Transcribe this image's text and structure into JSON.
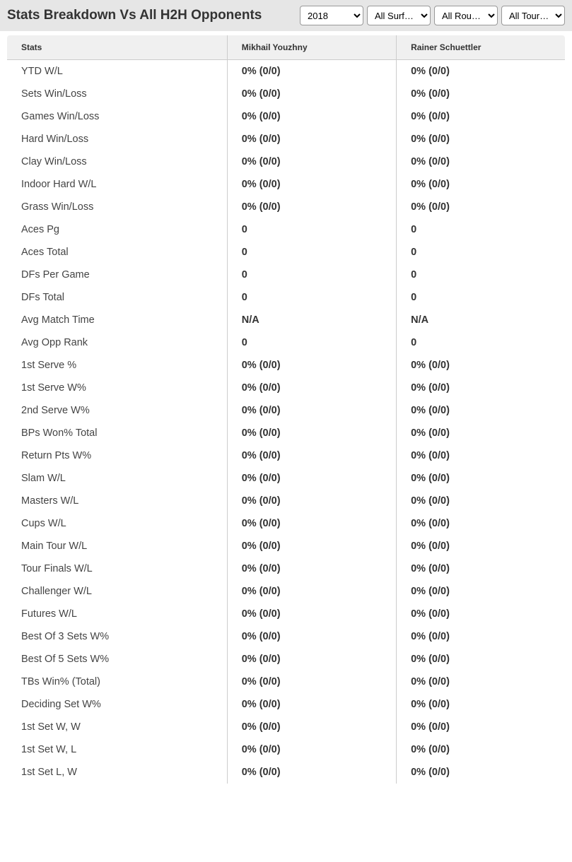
{
  "header": {
    "title": "Stats Breakdown Vs All H2H Opponents"
  },
  "filters": {
    "year": {
      "selected": "2018"
    },
    "surface": {
      "selected": "All Surf…"
    },
    "round": {
      "selected": "All Rou…"
    },
    "tournament": {
      "selected": "All Tour…"
    }
  },
  "table": {
    "columns": {
      "stats": "Stats",
      "player1": "Mikhail Youzhny",
      "player2": "Rainer Schuettler"
    },
    "rows": [
      {
        "stat": "YTD W/L",
        "p1": "0% (0/0)",
        "p2": "0% (0/0)"
      },
      {
        "stat": "Sets Win/Loss",
        "p1": "0% (0/0)",
        "p2": "0% (0/0)"
      },
      {
        "stat": "Games Win/Loss",
        "p1": "0% (0/0)",
        "p2": "0% (0/0)"
      },
      {
        "stat": "Hard Win/Loss",
        "p1": "0% (0/0)",
        "p2": "0% (0/0)"
      },
      {
        "stat": "Clay Win/Loss",
        "p1": "0% (0/0)",
        "p2": "0% (0/0)"
      },
      {
        "stat": "Indoor Hard W/L",
        "p1": "0% (0/0)",
        "p2": "0% (0/0)"
      },
      {
        "stat": "Grass Win/Loss",
        "p1": "0% (0/0)",
        "p2": "0% (0/0)"
      },
      {
        "stat": "Aces Pg",
        "p1": "0",
        "p2": "0"
      },
      {
        "stat": "Aces Total",
        "p1": "0",
        "p2": "0"
      },
      {
        "stat": "DFs Per Game",
        "p1": "0",
        "p2": "0"
      },
      {
        "stat": "DFs Total",
        "p1": "0",
        "p2": "0"
      },
      {
        "stat": "Avg Match Time",
        "p1": "N/A",
        "p2": "N/A"
      },
      {
        "stat": "Avg Opp Rank",
        "p1": "0",
        "p2": "0"
      },
      {
        "stat": "1st Serve %",
        "p1": "0% (0/0)",
        "p2": "0% (0/0)"
      },
      {
        "stat": "1st Serve W%",
        "p1": "0% (0/0)",
        "p2": "0% (0/0)"
      },
      {
        "stat": "2nd Serve W%",
        "p1": "0% (0/0)",
        "p2": "0% (0/0)"
      },
      {
        "stat": "BPs Won% Total",
        "p1": "0% (0/0)",
        "p2": "0% (0/0)"
      },
      {
        "stat": "Return Pts W%",
        "p1": "0% (0/0)",
        "p2": "0% (0/0)"
      },
      {
        "stat": "Slam W/L",
        "p1": "0% (0/0)",
        "p2": "0% (0/0)"
      },
      {
        "stat": "Masters W/L",
        "p1": "0% (0/0)",
        "p2": "0% (0/0)"
      },
      {
        "stat": "Cups W/L",
        "p1": "0% (0/0)",
        "p2": "0% (0/0)"
      },
      {
        "stat": "Main Tour W/L",
        "p1": "0% (0/0)",
        "p2": "0% (0/0)"
      },
      {
        "stat": "Tour Finals W/L",
        "p1": "0% (0/0)",
        "p2": "0% (0/0)"
      },
      {
        "stat": "Challenger W/L",
        "p1": "0% (0/0)",
        "p2": "0% (0/0)"
      },
      {
        "stat": "Futures W/L",
        "p1": "0% (0/0)",
        "p2": "0% (0/0)"
      },
      {
        "stat": "Best Of 3 Sets W%",
        "p1": "0% (0/0)",
        "p2": "0% (0/0)"
      },
      {
        "stat": "Best Of 5 Sets W%",
        "p1": "0% (0/0)",
        "p2": "0% (0/0)"
      },
      {
        "stat": "TBs Win% (Total)",
        "p1": "0% (0/0)",
        "p2": "0% (0/0)"
      },
      {
        "stat": "Deciding Set W%",
        "p1": "0% (0/0)",
        "p2": "0% (0/0)"
      },
      {
        "stat": "1st Set W, W",
        "p1": "0% (0/0)",
        "p2": "0% (0/0)"
      },
      {
        "stat": "1st Set W, L",
        "p1": "0% (0/0)",
        "p2": "0% (0/0)"
      },
      {
        "stat": "1st Set L, W",
        "p1": "0% (0/0)",
        "p2": "0% (0/0)"
      }
    ]
  }
}
